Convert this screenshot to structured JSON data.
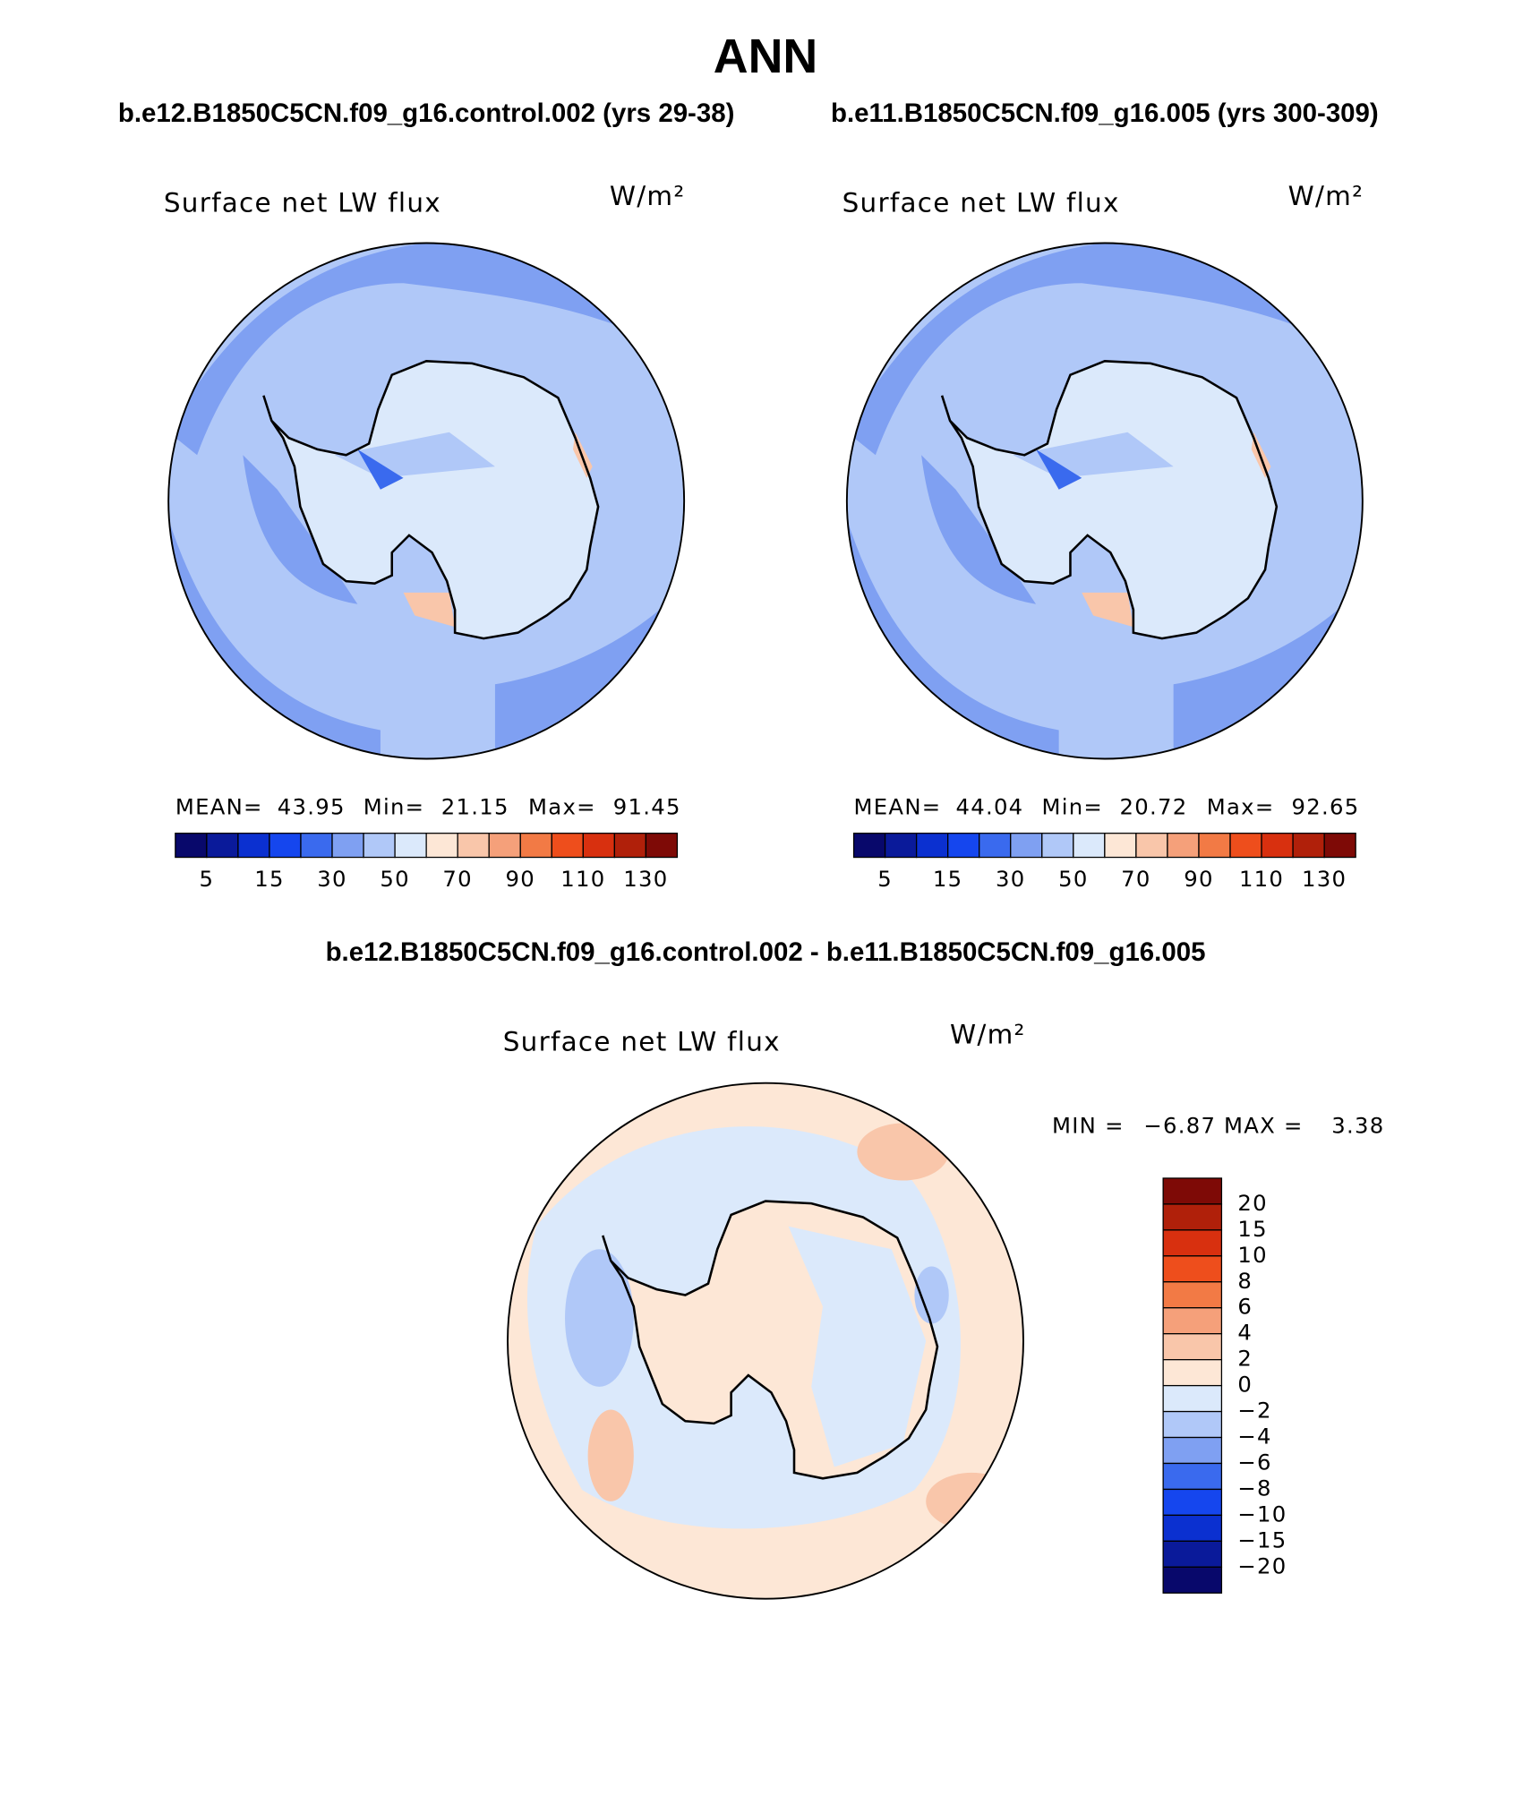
{
  "title": "ANN",
  "panels": [
    {
      "case": "b.e12.B1850C5CN.f09_g16.control.002 (yrs 29-38)",
      "variable": "Surface net LW flux",
      "units": "W/m²",
      "stats": [
        {
          "label": "MEAN=",
          "value": "43.95"
        },
        {
          "label": "Min=",
          "value": "21.15"
        },
        {
          "label": "Max=",
          "value": "91.45"
        }
      ],
      "colorbar": {
        "colors": [
          "#08086b",
          "#0a1a9a",
          "#0b30d0",
          "#1546ee",
          "#3a6aee",
          "#7fa0f2",
          "#b0c8f8",
          "#dbe9fb",
          "#fde7d6",
          "#f9c6aa",
          "#f5a07a",
          "#f27a45",
          "#ee4e1c",
          "#d8300f",
          "#b0200a",
          "#7e0a06"
        ],
        "labels": [
          "5",
          "15",
          "30",
          "50",
          "70",
          "90",
          "110",
          "130"
        ]
      }
    },
    {
      "case": "b.e11.B1850C5CN.f09_g16.005 (yrs 300-309)",
      "variable": "Surface net LW flux",
      "units": "W/m²",
      "stats": [
        {
          "label": "MEAN=",
          "value": "44.04"
        },
        {
          "label": "Min=",
          "value": "20.72"
        },
        {
          "label": "Max=",
          "value": "92.65"
        }
      ],
      "colorbar": {
        "colors": [
          "#08086b",
          "#0a1a9a",
          "#0b30d0",
          "#1546ee",
          "#3a6aee",
          "#7fa0f2",
          "#b0c8f8",
          "#dbe9fb",
          "#fde7d6",
          "#f9c6aa",
          "#f5a07a",
          "#f27a45",
          "#ee4e1c",
          "#d8300f",
          "#b0200a",
          "#7e0a06"
        ],
        "labels": [
          "5",
          "15",
          "30",
          "50",
          "70",
          "90",
          "110",
          "130"
        ]
      }
    }
  ],
  "difference": {
    "case": "b.e12.B1850C5CN.f09_g16.control.002 - b.e11.B1850C5CN.f09_g16.005",
    "variable": "Surface net LW flux",
    "units": "W/m²",
    "stats": [
      {
        "label": "MIN =",
        "value": "−6.87"
      },
      {
        "label": "MAX =",
        "value": "3.38"
      }
    ],
    "colorbar": {
      "colors": [
        "#7e0a06",
        "#b0200a",
        "#d8300f",
        "#ee4e1c",
        "#f27a45",
        "#f5a07a",
        "#f9c6aa",
        "#fde7d6",
        "#dbe9fb",
        "#b0c8f8",
        "#7fa0f2",
        "#3a6aee",
        "#1546ee",
        "#0b30d0",
        "#0a1a9a",
        "#08086b"
      ],
      "labels": [
        "20",
        "15",
        "10",
        "8",
        "6",
        "4",
        "2",
        "0",
        "−2",
        "−4",
        "−6",
        "−8",
        "−10",
        "−15",
        "−20"
      ]
    }
  }
}
